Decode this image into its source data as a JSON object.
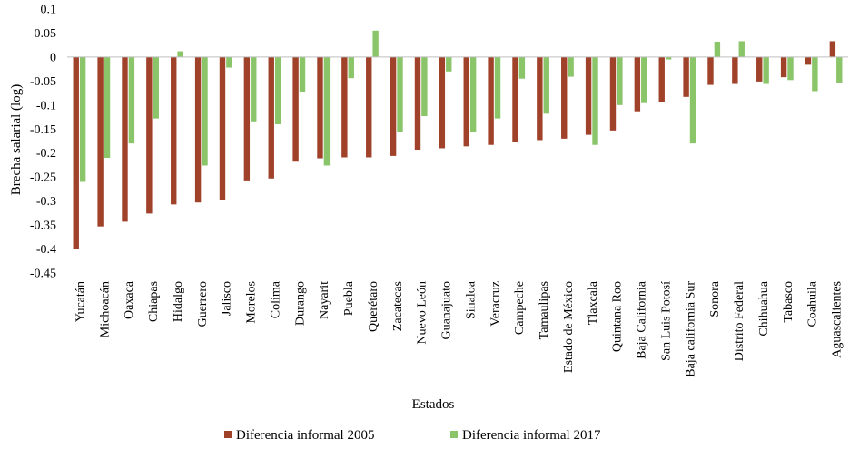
{
  "chart_data": {
    "type": "bar",
    "title": "",
    "xlabel": "Estados",
    "ylabel": "Brecha salarial (log)",
    "ylim": [
      -0.45,
      0.1
    ],
    "ytick_step": 0.05,
    "ytick_labels": [
      "0.1",
      "0.05",
      "0",
      "-0.05",
      "-0.1",
      "-0.15",
      "-0.2",
      "-0.25",
      "-0.3",
      "-0.35",
      "-0.4",
      "-0.45"
    ],
    "grid": false,
    "legend_position": "bottom",
    "categories": [
      "Yucatán",
      "Michoacán",
      "Oaxaca",
      "Chiapas",
      "Hidalgo",
      "Guerrero",
      "Jalisco",
      "Morelos",
      "Colima",
      "Durango",
      "Nayarit",
      "Puebla",
      "Querétaro",
      "Zacatecas",
      "Nuevo León",
      "Guanajuato",
      "Sinaloa",
      "Veracruz",
      "Campeche",
      "Tamaulipas",
      "Estado de México",
      "Tlaxcala",
      "Quintana Roo",
      "Baja California",
      "San Luis Potosí",
      "Baja california Sur",
      "Sonora",
      "Distrito Federal",
      "Chihuahua",
      "Tabasco",
      "Coahuila",
      "Aguascalientes"
    ],
    "series": [
      {
        "name": "Diferencia informal 2005",
        "color": "#A0412A",
        "values": [
          -0.4,
          -0.353,
          -0.343,
          -0.326,
          -0.307,
          -0.303,
          -0.297,
          -0.257,
          -0.253,
          -0.218,
          -0.211,
          -0.209,
          -0.209,
          -0.206,
          -0.193,
          -0.19,
          -0.186,
          -0.183,
          -0.177,
          -0.173,
          -0.17,
          -0.162,
          -0.153,
          -0.113,
          -0.093,
          -0.083,
          -0.058,
          -0.056,
          -0.051,
          -0.042,
          -0.016,
          0.033
        ]
      },
      {
        "name": "Diferencia informal 2017",
        "color": "#8BC56A",
        "values": [
          -0.26,
          -0.21,
          -0.18,
          -0.128,
          0.012,
          -0.226,
          -0.022,
          -0.134,
          -0.14,
          -0.072,
          -0.226,
          -0.044,
          0.055,
          -0.157,
          -0.123,
          -0.03,
          -0.157,
          -0.128,
          -0.045,
          -0.118,
          -0.041,
          -0.183,
          -0.1,
          -0.096,
          -0.005,
          -0.18,
          0.032,
          0.033,
          -0.056,
          -0.048,
          -0.071,
          -0.053
        ]
      }
    ]
  }
}
